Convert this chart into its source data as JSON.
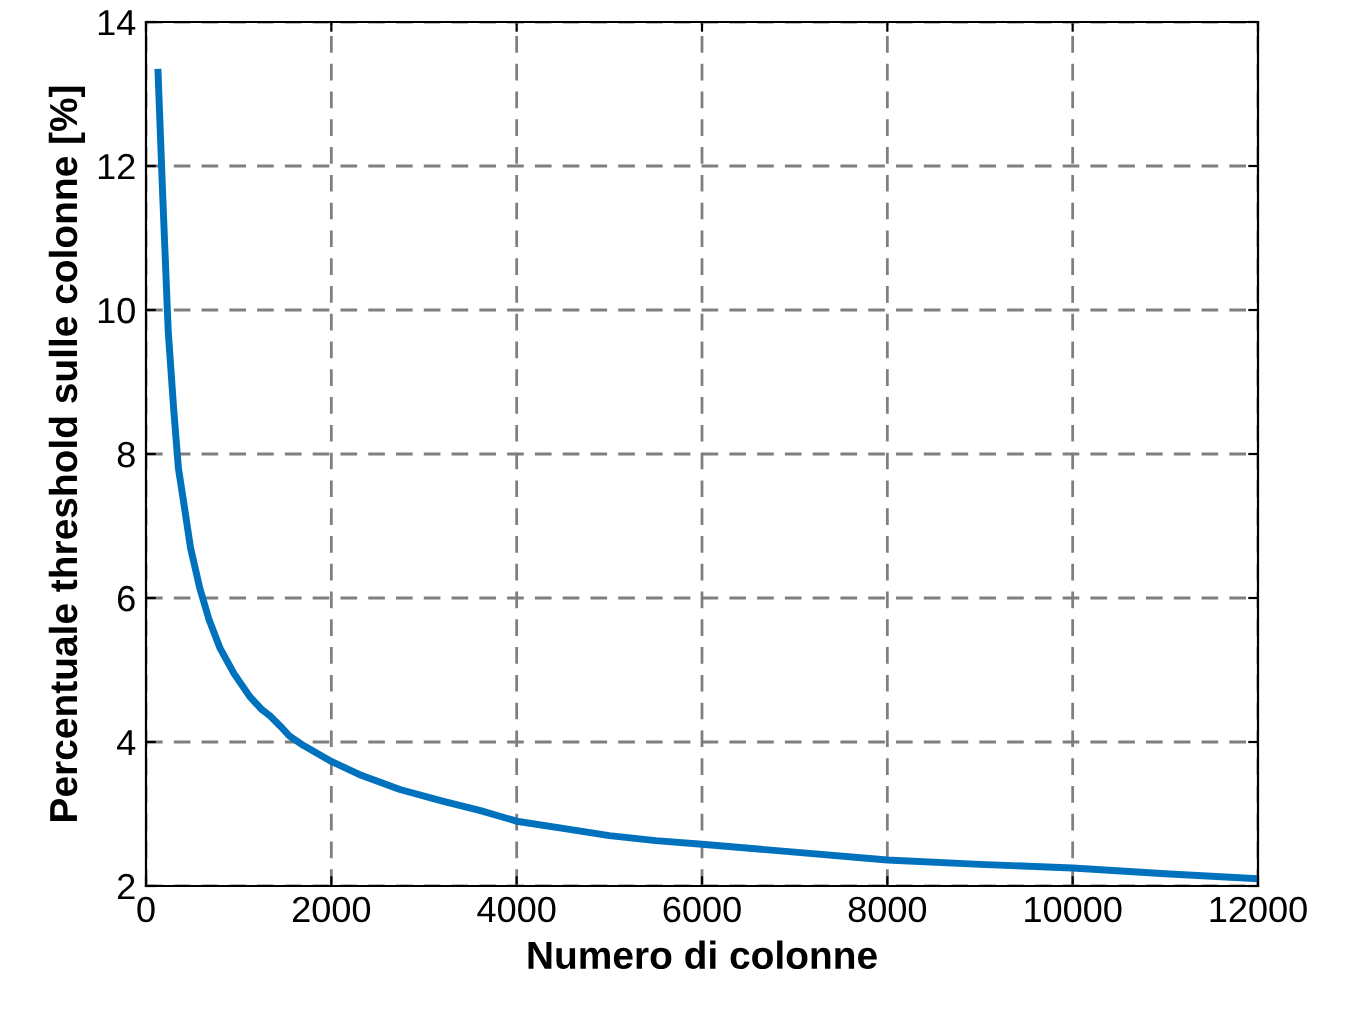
{
  "chart_data": {
    "type": "line",
    "xlabel": "Numero di colonne",
    "ylabel": "Percentuale threshold sulle colonne [%]",
    "x": [
      130,
      180,
      240,
      300,
      350,
      410,
      480,
      580,
      680,
      800,
      950,
      1120,
      1250,
      1340,
      1450,
      1550,
      1700,
      2000,
      2300,
      2740,
      3200,
      3600,
      4000,
      4500,
      5000,
      5500,
      6000,
      7000,
      8000,
      9000,
      10000,
      11000,
      12000
    ],
    "series": [
      {
        "color": "#0072bd",
        "values": [
          13.3,
          11.6,
          9.7,
          8.6,
          7.8,
          7.3,
          6.7,
          6.14,
          5.7,
          5.3,
          4.95,
          4.63,
          4.45,
          4.36,
          4.22,
          4.08,
          3.95,
          3.73,
          3.55,
          3.34,
          3.18,
          3.05,
          2.9,
          2.8,
          2.7,
          2.63,
          2.58,
          2.47,
          2.36,
          2.3,
          2.25,
          2.17,
          2.1
        ]
      }
    ],
    "xlim": [
      0,
      12000
    ],
    "ylim": [
      2,
      14
    ],
    "xticks": [
      0,
      2000,
      4000,
      6000,
      8000,
      10000,
      12000
    ],
    "yticks": [
      2,
      4,
      6,
      8,
      10,
      12,
      14
    ],
    "grid": true,
    "line_style": "solid",
    "marker": "none"
  }
}
